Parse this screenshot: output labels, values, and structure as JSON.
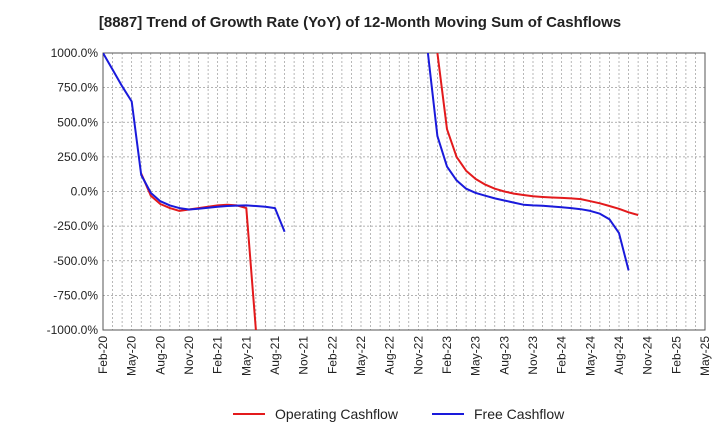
{
  "chart_data": {
    "type": "line",
    "title": "[8887]  Trend of Growth Rate (YoY) of 12-Month Moving Sum of Cashflows",
    "xlabel": "",
    "ylabel": "",
    "ylim": [
      -1000,
      1000
    ],
    "y_ticks": [
      1000,
      750,
      500,
      250,
      0,
      -250,
      -500,
      -750,
      -1000
    ],
    "y_tick_labels": [
      "1000.0%",
      "750.0%",
      "500.0%",
      "250.0%",
      "0.0%",
      "-250.0%",
      "-500.0%",
      "-750.0%",
      "-1000.0%"
    ],
    "x_range": [
      "2020-02",
      "2025-05"
    ],
    "x_tick_labels": [
      "Feb-20",
      "May-20",
      "Aug-20",
      "Nov-20",
      "Feb-21",
      "May-21",
      "Aug-21",
      "Nov-21",
      "Feb-22",
      "May-22",
      "Aug-22",
      "Nov-22",
      "Feb-23",
      "May-23",
      "Aug-23",
      "Nov-23",
      "Feb-24",
      "May-24",
      "Aug-24",
      "Nov-24",
      "Feb-25",
      "May-25"
    ],
    "grid": true,
    "legend_position": "bottom",
    "series": [
      {
        "name": "Operating Cashflow",
        "color": "#e31a1c",
        "points": [
          [
            "2020-06",
            130
          ],
          [
            "2020-07",
            -30
          ],
          [
            "2020-08",
            -90
          ],
          [
            "2020-09",
            -120
          ],
          [
            "2020-10",
            -140
          ],
          [
            "2020-11",
            -130
          ],
          [
            "2020-12",
            -120
          ],
          [
            "2021-01",
            -110
          ],
          [
            "2021-02",
            -100
          ],
          [
            "2021-03",
            -95
          ],
          [
            "2021-04",
            -100
          ],
          [
            "2021-05",
            -120
          ],
          [
            "2021-06",
            -1000
          ],
          null,
          [
            "2023-01",
            1000
          ],
          [
            "2023-02",
            450
          ],
          [
            "2023-03",
            250
          ],
          [
            "2023-04",
            150
          ],
          [
            "2023-05",
            90
          ],
          [
            "2023-06",
            50
          ],
          [
            "2023-07",
            20
          ],
          [
            "2023-08",
            0
          ],
          [
            "2023-09",
            -15
          ],
          [
            "2023-10",
            -25
          ],
          [
            "2023-11",
            -35
          ],
          [
            "2023-12",
            -40
          ],
          [
            "2024-01",
            -43
          ],
          [
            "2024-02",
            -46
          ],
          [
            "2024-03",
            -50
          ],
          [
            "2024-04",
            -55
          ],
          [
            "2024-05",
            -70
          ],
          [
            "2024-06",
            -85
          ],
          [
            "2024-07",
            -105
          ],
          [
            "2024-08",
            -125
          ],
          [
            "2024-09",
            -150
          ],
          [
            "2024-10",
            -170
          ]
        ]
      },
      {
        "name": "Free Cashflow",
        "color": "#1a1adb",
        "points": [
          [
            "2020-02",
            1000
          ],
          [
            "2020-03",
            880
          ],
          [
            "2020-04",
            760
          ],
          [
            "2020-05",
            650
          ],
          [
            "2020-06",
            120
          ],
          [
            "2020-07",
            -10
          ],
          [
            "2020-08",
            -70
          ],
          [
            "2020-09",
            -100
          ],
          [
            "2020-10",
            -120
          ],
          [
            "2020-11",
            -130
          ],
          [
            "2020-12",
            -125
          ],
          [
            "2021-01",
            -118
          ],
          [
            "2021-02",
            -110
          ],
          [
            "2021-03",
            -105
          ],
          [
            "2021-04",
            -102
          ],
          [
            "2021-05",
            -100
          ],
          [
            "2021-06",
            -105
          ],
          [
            "2021-07",
            -110
          ],
          [
            "2021-08",
            -120
          ],
          [
            "2021-09",
            -290
          ],
          null,
          [
            "2022-12",
            1000
          ],
          [
            "2023-01",
            400
          ],
          [
            "2023-02",
            180
          ],
          [
            "2023-03",
            80
          ],
          [
            "2023-04",
            20
          ],
          [
            "2023-05",
            -10
          ],
          [
            "2023-06",
            -30
          ],
          [
            "2023-07",
            -50
          ],
          [
            "2023-08",
            -65
          ],
          [
            "2023-09",
            -80
          ],
          [
            "2023-10",
            -95
          ],
          [
            "2023-11",
            -100
          ],
          [
            "2023-12",
            -103
          ],
          [
            "2024-01",
            -108
          ],
          [
            "2024-02",
            -113
          ],
          [
            "2024-03",
            -120
          ],
          [
            "2024-04",
            -128
          ],
          [
            "2024-05",
            -140
          ],
          [
            "2024-06",
            -160
          ],
          [
            "2024-07",
            -200
          ],
          [
            "2024-08",
            -300
          ],
          [
            "2024-09",
            -570
          ]
        ]
      }
    ]
  }
}
